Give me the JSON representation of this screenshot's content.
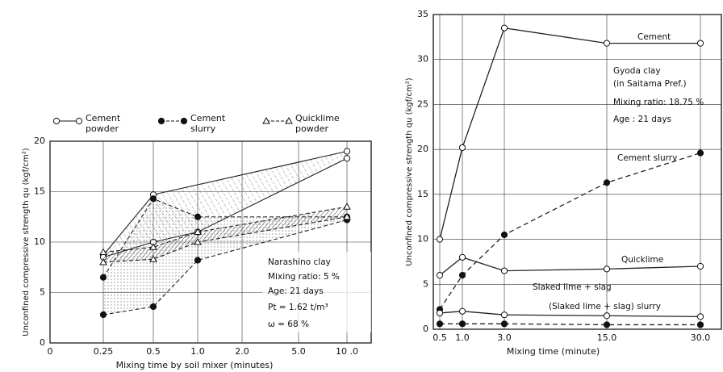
{
  "chart_data": [
    {
      "type": "band-line",
      "y_label": "Unconfined compressive strength qu (kgf/cm²)",
      "x_label": "Mixing time by soil mixer (minutes)",
      "xlim": [
        0,
        10
      ],
      "ylim": [
        0,
        20
      ],
      "xticks": [
        0,
        0.25,
        0.5,
        {
          "value": 1,
          "label": "1.0"
        },
        {
          "value": 2,
          "label": "2.0"
        },
        {
          "value": 5,
          "label": "5.0"
        },
        {
          "value": 10,
          "label": "10 .0"
        }
      ],
      "yticks": [
        0,
        5,
        10,
        15,
        20
      ],
      "grid": true,
      "series": [
        {
          "name": "Cement powder",
          "color": "#222222",
          "marker": "open-circle",
          "upper": {
            "x": [
              0.25,
              0.5,
              10
            ],
            "values": [
              8.7,
              14.7,
              19.0
            ]
          },
          "lower": {
            "x": [
              0.25,
              0.5,
              1,
              10
            ],
            "values": [
              8.5,
              10,
              11,
              18.3
            ]
          }
        },
        {
          "name": "Cement slurry",
          "color": "#222222",
          "marker": "filled-circle",
          "upper": {
            "x": [
              0.25,
              0.5,
              1,
              10
            ],
            "values": [
              6.5,
              14.3,
              12.5,
              12.5
            ]
          },
          "lower": {
            "x": [
              0.25,
              0.5,
              1,
              10
            ],
            "values": [
              2.8,
              3.6,
              8.2,
              12.2
            ]
          }
        },
        {
          "name": "Quicklime powder",
          "color": "#222222",
          "marker": "open-triangle",
          "upper": {
            "x": [
              0.25,
              0.5,
              1,
              10
            ],
            "values": [
              9.0,
              9.5,
              11,
              13.5
            ]
          },
          "lower": {
            "x": [
              0.25,
              0.5,
              1,
              10
            ],
            "values": [
              8.0,
              8.3,
              10,
              12.5
            ]
          }
        }
      ],
      "annotations": [
        "Narashino clay",
        "Mixing ratio: 5 %",
        "Age: 21 days",
        "Pt = 1.62 t/m³",
        "ω = 68 %"
      ]
    },
    {
      "type": "line",
      "y_label": "Unconfined compressive strength qu (kgf/cm²)",
      "x_label": "Mixing time (minute)",
      "xlim": [
        0,
        30
      ],
      "ylim": [
        0,
        35
      ],
      "xticks": [
        0.5,
        {
          "value": 1,
          "label": "1.0"
        },
        {
          "value": 3,
          "label": "3.0"
        },
        {
          "value": 15,
          "label": "15.0"
        },
        {
          "value": 30,
          "label": "30.0"
        }
      ],
      "yticks": [
        0,
        5,
        10,
        15,
        20,
        25,
        30,
        35
      ],
      "grid": true,
      "series": [
        {
          "name": "Cement",
          "color": "#222222",
          "dash": false,
          "marker": "open-circle",
          "x": [
            0.5,
            1,
            3,
            15,
            30
          ],
          "values": [
            10,
            20.2,
            33.5,
            31.8,
            31.8
          ]
        },
        {
          "name": "Cement slurry",
          "color": "#222222",
          "dash": true,
          "marker": "filled-circle",
          "x": [
            0.5,
            1,
            3,
            15,
            30
          ],
          "values": [
            2.2,
            6,
            10.5,
            16.3,
            19.6
          ]
        },
        {
          "name": "Quicklime",
          "color": "#222222",
          "dash": false,
          "marker": "open-circle",
          "x": [
            0.5,
            1,
            3,
            15,
            30
          ],
          "values": [
            6,
            8,
            6.5,
            6.7,
            7
          ]
        },
        {
          "name": "Slaked lime + slag",
          "color": "#222222",
          "dash": false,
          "marker": "open-circle",
          "x": [
            0.5,
            1,
            3,
            15,
            30
          ],
          "values": [
            1.8,
            2,
            1.6,
            1.5,
            1.4
          ]
        },
        {
          "name": "(Slaked lime + slag) slurry",
          "color": "#222222",
          "dash": true,
          "marker": "filled-circle",
          "x": [
            0.5,
            1,
            3,
            15,
            30
          ],
          "values": [
            0.6,
            0.6,
            0.6,
            0.5,
            0.5
          ]
        }
      ],
      "annotations": [
        "Gyoda clay",
        "(in Saitama Pref.)",
        "Mixing ratio: 18.75 %",
        "Age : 21 days"
      ]
    }
  ]
}
